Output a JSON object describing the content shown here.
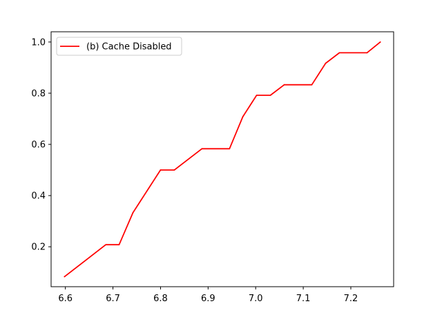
{
  "chart_data": {
    "type": "line",
    "title": "",
    "xlabel": "",
    "ylabel": "",
    "xlim": [
      6.57,
      7.29
    ],
    "ylim": [
      0.044,
      1.04
    ],
    "xticks": [
      {
        "value": 6.6,
        "label": "6.6"
      },
      {
        "value": 6.7,
        "label": "6.7"
      },
      {
        "value": 6.8,
        "label": "6.8"
      },
      {
        "value": 6.9,
        "label": "6.9"
      },
      {
        "value": 7.0,
        "label": "7.0"
      },
      {
        "value": 7.1,
        "label": "7.1"
      },
      {
        "value": 7.2,
        "label": "7.2"
      }
    ],
    "yticks": [
      {
        "value": 0.2,
        "label": "0.2"
      },
      {
        "value": 0.4,
        "label": "0.4"
      },
      {
        "value": 0.6,
        "label": "0.6"
      },
      {
        "value": 0.8,
        "label": "0.8"
      },
      {
        "value": 1.0,
        "label": "1.0"
      }
    ],
    "grid": false,
    "legend_position": "upper-left",
    "series": [
      {
        "name": "(b) Cache Disabled",
        "color": "#ff0000",
        "x": [
          6.598,
          6.685,
          6.713,
          6.742,
          6.8,
          6.829,
          6.887,
          6.945,
          6.973,
          7.002,
          7.031,
          7.06,
          7.118,
          7.147,
          7.176,
          7.234,
          7.262
        ],
        "y": [
          0.083,
          0.208,
          0.208,
          0.333,
          0.5,
          0.5,
          0.583,
          0.583,
          0.708,
          0.792,
          0.792,
          0.833,
          0.833,
          0.917,
          0.958,
          0.958,
          1.0
        ]
      }
    ]
  }
}
